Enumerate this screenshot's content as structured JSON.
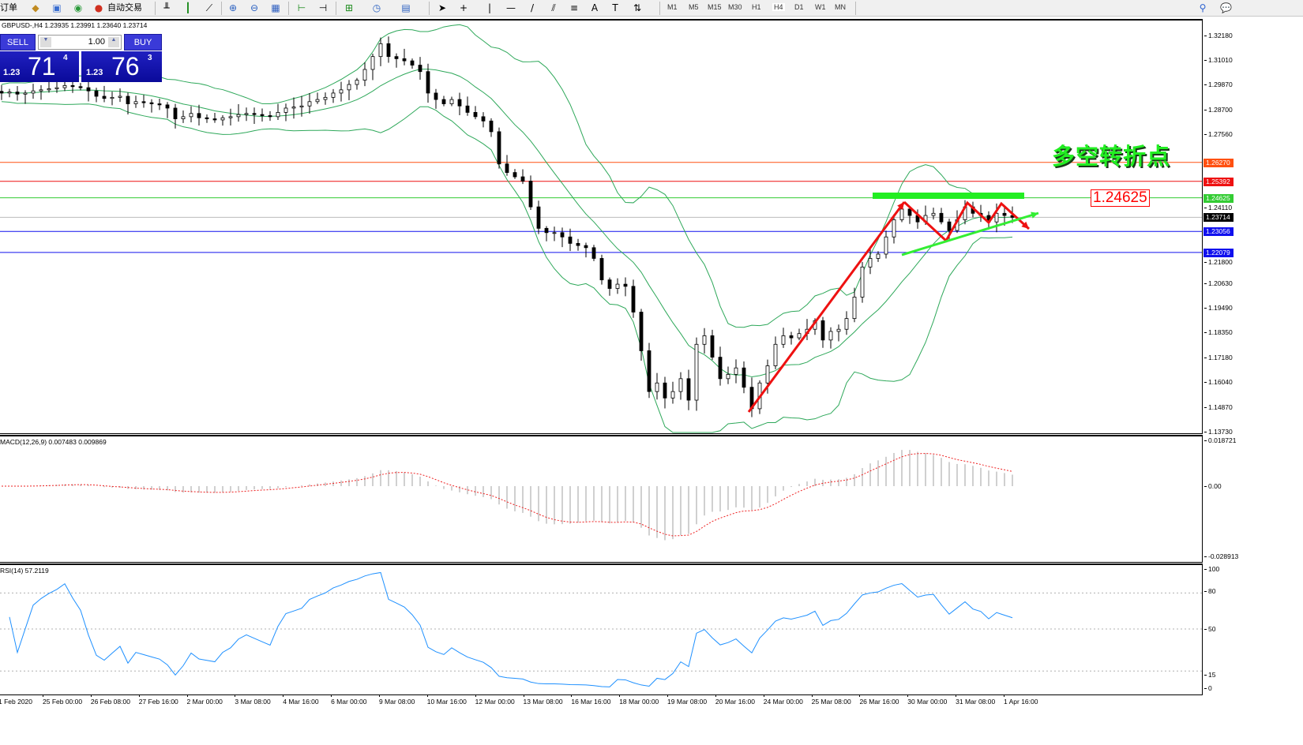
{
  "toolbar": {
    "new_order": "订单",
    "auto_trading": "自动交易",
    "timeframes": [
      "M1",
      "M5",
      "M15",
      "M30",
      "H1",
      "H4",
      "D1",
      "W1",
      "MN"
    ],
    "active_timeframe": "H4"
  },
  "chart": {
    "header": "GBPUSD-,H4  1.23935 1.23991 1.23640 1.23714",
    "annotation_title": "多空转折点",
    "annotation_price": "1.24625",
    "price_ticks": [
      "1.32180",
      "1.31010",
      "1.29870",
      "1.28700",
      "1.27560",
      "1.24110",
      "1.21800",
      "1.20630",
      "1.19490",
      "1.18350",
      "1.17180",
      "1.16040",
      "1.14870",
      "1.13730"
    ],
    "levels": [
      {
        "price": "1.26270",
        "color": "#ff5010"
      },
      {
        "price": "1.25392",
        "color": "#ee1111"
      },
      {
        "price": "1.24625",
        "color": "#33cc33"
      },
      {
        "price": "1.23714",
        "color": "#000000"
      },
      {
        "price": "1.23056",
        "color": "#1010ee"
      },
      {
        "price": "1.22079",
        "color": "#1010ee"
      }
    ],
    "time_labels": [
      "1 Feb 2020",
      "25 Feb 00:00",
      "26 Feb 08:00",
      "27 Feb 16:00",
      "2 Mar 00:00",
      "3 Mar 08:00",
      "4 Mar 16:00",
      "6 Mar 00:00",
      "9 Mar 08:00",
      "10 Mar 16:00",
      "12 Mar 00:00",
      "13 Mar 08:00",
      "16 Mar 16:00",
      "18 Mar 00:00",
      "19 Mar 08:00",
      "20 Mar 16:00",
      "24 Mar 00:00",
      "25 Mar 08:00",
      "26 Mar 16:00",
      "30 Mar 00:00",
      "31 Mar 08:00",
      "1 Apr 16:00"
    ]
  },
  "trade_panel": {
    "sell_label": "SELL",
    "buy_label": "BUY",
    "lot": "1.00",
    "sell_prefix": "1.23",
    "sell_big": "71",
    "sell_point": "4",
    "buy_prefix": "1.23",
    "buy_big": "76",
    "buy_point": "3"
  },
  "macd": {
    "label": "MACD(12,26,9) 0.007483 0.009869",
    "ticks": [
      "0.018721",
      "0.00",
      "-0.028913"
    ]
  },
  "rsi": {
    "label": "RSI(14) 57.2119",
    "ticks": [
      "100",
      "80",
      "50",
      "15",
      "0"
    ]
  },
  "chart_data": {
    "type": "candlestick",
    "symbol": "GBPUSD",
    "timeframe": "H4",
    "ylim": [
      1.1373,
      1.3218
    ],
    "closes": [
      1.295,
      1.2955,
      1.2945,
      1.295,
      1.296,
      1.2965,
      1.297,
      1.2975,
      1.2985,
      1.298,
      1.2975,
      1.296,
      1.2935,
      1.2925,
      1.293,
      1.2935,
      1.29,
      1.291,
      1.2905,
      1.29,
      1.2895,
      1.288,
      1.283,
      1.284,
      1.2855,
      1.2835,
      1.283,
      1.2825,
      1.2835,
      1.284,
      1.285,
      1.2855,
      1.285,
      1.2845,
      1.284,
      1.286,
      1.288,
      1.2885,
      1.289,
      1.291,
      1.292,
      1.293,
      1.295,
      1.2965,
      1.299,
      1.301,
      1.306,
      1.312,
      1.318,
      1.312,
      1.311,
      1.31,
      1.308,
      1.305,
      1.295,
      1.292,
      1.29,
      1.292,
      1.289,
      1.286,
      1.284,
      1.282,
      1.277,
      1.262,
      1.258,
      1.256,
      1.254,
      1.242,
      1.232,
      1.23,
      1.23,
      1.228,
      1.225,
      1.224,
      1.223,
      1.218,
      1.208,
      1.204,
      1.206,
      1.205,
      1.193,
      1.175,
      1.156,
      1.16,
      1.153,
      1.156,
      1.162,
      1.152,
      1.178,
      1.182,
      1.172,
      1.162,
      1.164,
      1.167,
      1.158,
      1.148,
      1.16,
      1.168,
      1.178,
      1.182,
      1.181,
      1.183,
      1.185,
      1.189,
      1.18,
      1.184,
      1.185,
      1.19,
      1.2,
      1.214,
      1.218,
      1.22,
      1.228,
      1.236,
      1.241,
      1.238,
      1.235,
      1.238,
      1.239,
      1.235,
      1.231,
      1.236,
      1.242,
      1.239,
      1.238,
      1.235,
      1.239,
      1.238,
      1.2371
    ]
  }
}
